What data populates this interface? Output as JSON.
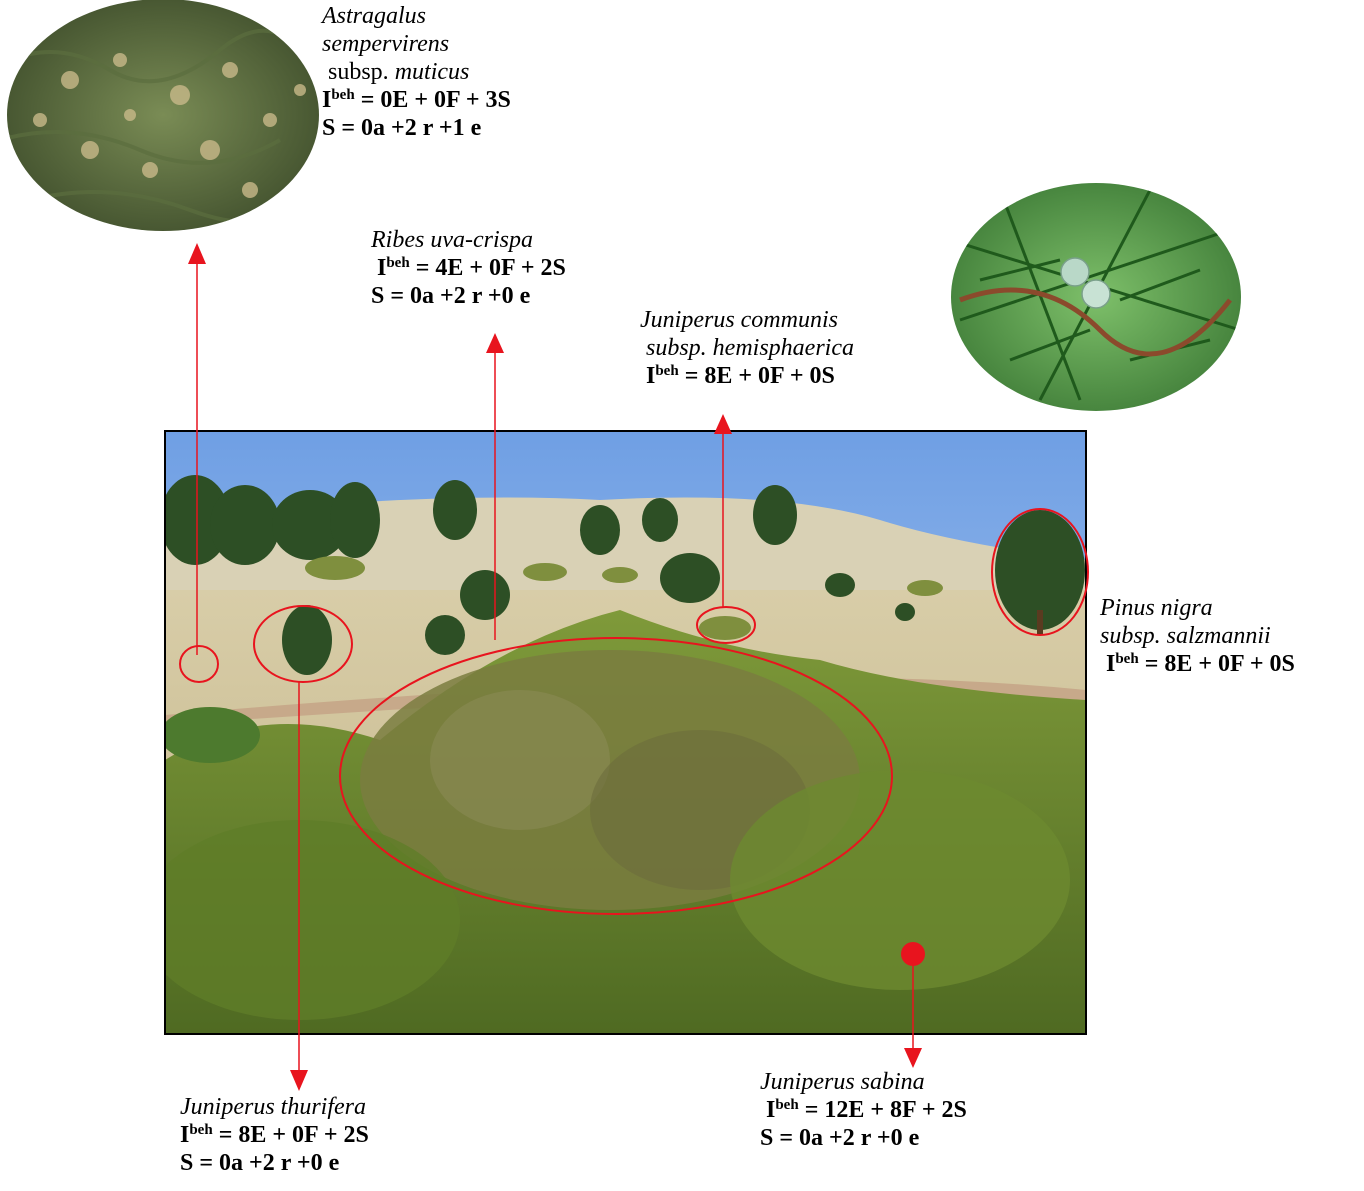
{
  "species": {
    "astragalus": {
      "name_line1": "Astragalus",
      "name_line2": "sempervirens",
      "subsp_word": "subsp.",
      "subsp_name": "muticus",
      "I": "I",
      "beh": "beh",
      "formula_rest": " = 0E + 0F + 3S",
      "s_formula": "S = 0a +2 r +1 e"
    },
    "ribes": {
      "name": "Ribes uva-crispa",
      "I": "I",
      "beh": "beh",
      "formula_rest": " = 4E + 0F + 2S",
      "s_formula": "S = 0a +2 r +0 e"
    },
    "juniperus_communis": {
      "name_line1": "Juniperus communis",
      "name_line2": "subsp. hemisphaerica",
      "I": "I",
      "beh": "beh",
      "formula_rest": " = 8E + 0F + 0S"
    },
    "pinus_nigra": {
      "name_line1": "Pinus nigra",
      "name_line2": "subsp. salzmannii",
      "I": "I",
      "beh": "beh",
      "formula_rest": " = 8E + 0F + 0S"
    },
    "juniperus_thurifera": {
      "name": "Juniperus thurifera",
      "I": "I",
      "beh": "beh",
      "formula_rest": " = 8E + 0F + 2S",
      "s_formula": "S = 0a +2 r +0 e"
    },
    "juniperus_sabina": {
      "name": "Juniperus sabina",
      "I": "I",
      "beh": "beh",
      "formula_rest": " = 12E + 8F + 2S",
      "s_formula": "S = 0a +2 r +0 e"
    }
  },
  "colors": {
    "annotation": "#e8141e",
    "sky": "#8fb6ea",
    "ground": "#cdbf92",
    "shrub": "#6f8a2e",
    "tree": "#2f5a26"
  }
}
